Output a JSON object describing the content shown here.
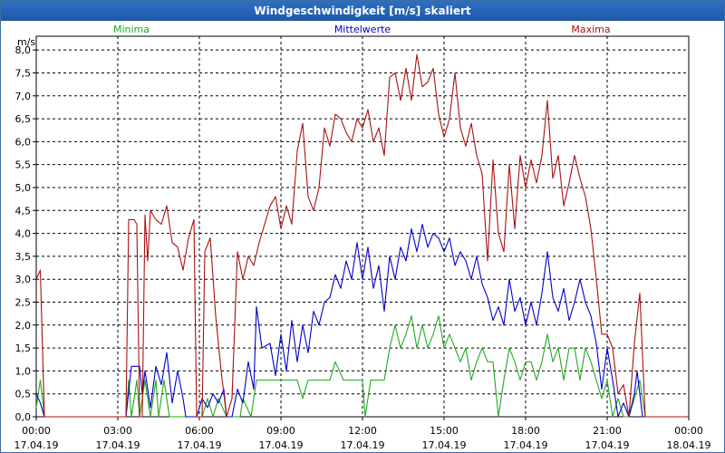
{
  "chart_data": {
    "type": "line",
    "title": "Windgeschwindigkeit [m/s] skaliert",
    "ylabel": "m/s",
    "ylim": [
      0,
      8.3
    ],
    "xlim": [
      0,
      24
    ],
    "yticks": [
      "0,0",
      "0,5",
      "1,0",
      "1,5",
      "2,0",
      "2,5",
      "3,0",
      "3,5",
      "4,0",
      "4,5",
      "5,0",
      "5,5",
      "6,0",
      "6,5",
      "7,0",
      "7,5",
      "8,0"
    ],
    "xticks": [
      {
        "time": "00:00",
        "date": "17.04.19"
      },
      {
        "time": "03:00",
        "date": "17.04.19"
      },
      {
        "time": "06:00",
        "date": "17.04.19"
      },
      {
        "time": "09:00",
        "date": "17.04.19"
      },
      {
        "time": "12:00",
        "date": "17.04.19"
      },
      {
        "time": "15:00",
        "date": "17.04.19"
      },
      {
        "time": "18:00",
        "date": "17.04.19"
      },
      {
        "time": "21:00",
        "date": "17.04.19"
      },
      {
        "time": "00:00",
        "date": "18.04.19"
      }
    ],
    "grid": true,
    "series": [
      {
        "name": "Minima",
        "color": "#22aa22",
        "points": [
          [
            0,
            0.2
          ],
          [
            0.15,
            0.8
          ],
          [
            0.3,
            0
          ],
          [
            3.3,
            0
          ],
          [
            3.4,
            0.8
          ],
          [
            3.5,
            0
          ],
          [
            3.7,
            0.8
          ],
          [
            3.8,
            0
          ],
          [
            4.0,
            0.8
          ],
          [
            4.2,
            0
          ],
          [
            4.4,
            0.8
          ],
          [
            4.5,
            0
          ],
          [
            4.7,
            0.8
          ],
          [
            4.9,
            0
          ],
          [
            5.4,
            0
          ],
          [
            6.1,
            0
          ],
          [
            6.3,
            0.4
          ],
          [
            6.5,
            0
          ],
          [
            6.7,
            0.4
          ],
          [
            7.0,
            0
          ],
          [
            7.5,
            0
          ],
          [
            7.6,
            0.4
          ],
          [
            7.9,
            0
          ],
          [
            8.1,
            0.8
          ],
          [
            8.3,
            0.8
          ],
          [
            8.6,
            0.8
          ],
          [
            8.8,
            0.8
          ],
          [
            9.2,
            0.8
          ],
          [
            9.4,
            0.8
          ],
          [
            9.6,
            0.8
          ],
          [
            9.8,
            0.4
          ],
          [
            10.0,
            0.8
          ],
          [
            10.8,
            0.8
          ],
          [
            11.0,
            1.2
          ],
          [
            11.3,
            0.8
          ],
          [
            11.6,
            0.8
          ],
          [
            12.0,
            0.8
          ],
          [
            12.1,
            0
          ],
          [
            12.3,
            0.8
          ],
          [
            12.8,
            0.8
          ],
          [
            13.0,
            1.5
          ],
          [
            13.2,
            2.0
          ],
          [
            13.4,
            1.5
          ],
          [
            13.6,
            1.8
          ],
          [
            13.8,
            2.2
          ],
          [
            14.0,
            1.5
          ],
          [
            14.2,
            2.0
          ],
          [
            14.4,
            1.5
          ],
          [
            14.6,
            1.8
          ],
          [
            14.8,
            2.2
          ],
          [
            15.0,
            1.5
          ],
          [
            15.2,
            1.8
          ],
          [
            15.4,
            1.5
          ],
          [
            15.6,
            1.2
          ],
          [
            15.8,
            1.5
          ],
          [
            16.0,
            0.8
          ],
          [
            16.2,
            1.2
          ],
          [
            16.4,
            1.5
          ],
          [
            16.6,
            1.2
          ],
          [
            16.8,
            1.2
          ],
          [
            17.0,
            0
          ],
          [
            17.2,
            0.8
          ],
          [
            17.4,
            1.5
          ],
          [
            17.6,
            1.2
          ],
          [
            17.8,
            0.8
          ],
          [
            18.0,
            1.2
          ],
          [
            18.2,
            1.2
          ],
          [
            18.4,
            0.8
          ],
          [
            18.6,
            1.2
          ],
          [
            18.8,
            1.8
          ],
          [
            19.0,
            1.2
          ],
          [
            19.2,
            1.5
          ],
          [
            19.4,
            0.8
          ],
          [
            19.6,
            1.5
          ],
          [
            19.8,
            1.5
          ],
          [
            20.0,
            0.8
          ],
          [
            20.2,
            1.5
          ],
          [
            20.4,
            1.2
          ],
          [
            20.6,
            0.8
          ],
          [
            20.8,
            0.4
          ],
          [
            21.0,
            0.8
          ],
          [
            21.2,
            0
          ],
          [
            21.4,
            0.4
          ],
          [
            21.6,
            0
          ],
          [
            21.8,
            0
          ],
          [
            22.0,
            0.4
          ],
          [
            22.2,
            0.8
          ],
          [
            22.4,
            0
          ],
          [
            24,
            0
          ]
        ]
      },
      {
        "name": "Mittelwerte",
        "color": "#0000cc",
        "points": [
          [
            0,
            0.5
          ],
          [
            0.15,
            0.3
          ],
          [
            0.3,
            0
          ],
          [
            3.3,
            0
          ],
          [
            3.5,
            1.1
          ],
          [
            3.8,
            1.1
          ],
          [
            3.9,
            0.5
          ],
          [
            4.0,
            1.0
          ],
          [
            4.2,
            0.2
          ],
          [
            4.4,
            1.1
          ],
          [
            4.6,
            0.7
          ],
          [
            4.8,
            1.4
          ],
          [
            5.0,
            0.3
          ],
          [
            5.2,
            1.0
          ],
          [
            5.4,
            0.4
          ],
          [
            5.5,
            0
          ],
          [
            5.9,
            0
          ],
          [
            6.1,
            0.4
          ],
          [
            6.3,
            0.2
          ],
          [
            6.5,
            0.5
          ],
          [
            6.7,
            0.3
          ],
          [
            6.9,
            0.6
          ],
          [
            7.0,
            0
          ],
          [
            7.2,
            0
          ],
          [
            7.4,
            0.6
          ],
          [
            7.6,
            0.3
          ],
          [
            7.8,
            1.2
          ],
          [
            8.0,
            0.6
          ],
          [
            8.1,
            2.4
          ],
          [
            8.3,
            1.5
          ],
          [
            8.6,
            1.6
          ],
          [
            8.8,
            0.9
          ],
          [
            9.0,
            1.8
          ],
          [
            9.2,
            1.0
          ],
          [
            9.4,
            2.1
          ],
          [
            9.6,
            1.2
          ],
          [
            9.8,
            2.0
          ],
          [
            10.0,
            1.4
          ],
          [
            10.2,
            2.3
          ],
          [
            10.4,
            2.0
          ],
          [
            10.6,
            2.5
          ],
          [
            10.8,
            2.6
          ],
          [
            11.0,
            3.1
          ],
          [
            11.2,
            2.8
          ],
          [
            11.4,
            3.4
          ],
          [
            11.6,
            3.0
          ],
          [
            11.8,
            3.8
          ],
          [
            12.0,
            3.0
          ],
          [
            12.2,
            3.7
          ],
          [
            12.4,
            2.8
          ],
          [
            12.6,
            3.3
          ],
          [
            12.8,
            2.3
          ],
          [
            13.0,
            3.5
          ],
          [
            13.2,
            3.0
          ],
          [
            13.4,
            3.7
          ],
          [
            13.6,
            3.4
          ],
          [
            13.8,
            4.1
          ],
          [
            14.0,
            3.6
          ],
          [
            14.2,
            4.2
          ],
          [
            14.4,
            3.7
          ],
          [
            14.6,
            4.0
          ],
          [
            14.8,
            3.9
          ],
          [
            15.0,
            3.6
          ],
          [
            15.2,
            3.9
          ],
          [
            15.4,
            3.3
          ],
          [
            15.6,
            3.6
          ],
          [
            15.8,
            3.4
          ],
          [
            16.0,
            3.0
          ],
          [
            16.2,
            3.5
          ],
          [
            16.4,
            2.9
          ],
          [
            16.6,
            2.6
          ],
          [
            16.8,
            2.1
          ],
          [
            17.0,
            2.4
          ],
          [
            17.2,
            2.0
          ],
          [
            17.4,
            3.0
          ],
          [
            17.6,
            2.3
          ],
          [
            17.8,
            2.6
          ],
          [
            18.0,
            2.0
          ],
          [
            18.2,
            2.5
          ],
          [
            18.4,
            2.0
          ],
          [
            18.6,
            2.7
          ],
          [
            18.8,
            3.6
          ],
          [
            19.0,
            2.6
          ],
          [
            19.2,
            2.3
          ],
          [
            19.4,
            2.8
          ],
          [
            19.6,
            2.1
          ],
          [
            19.8,
            2.5
          ],
          [
            20.0,
            3.0
          ],
          [
            20.2,
            2.5
          ],
          [
            20.4,
            2.2
          ],
          [
            20.6,
            1.6
          ],
          [
            20.8,
            0.6
          ],
          [
            21.0,
            1.5
          ],
          [
            21.2,
            0.8
          ],
          [
            21.4,
            0
          ],
          [
            21.6,
            0.3
          ],
          [
            21.8,
            0
          ],
          [
            22.0,
            0.5
          ],
          [
            22.1,
            1.0
          ],
          [
            22.3,
            0
          ],
          [
            24,
            0
          ]
        ]
      },
      {
        "name": "Maxima",
        "color": "#aa1111",
        "points": [
          [
            0,
            3.0
          ],
          [
            0.15,
            3.2
          ],
          [
            0.3,
            0
          ],
          [
            3.3,
            0
          ],
          [
            3.4,
            4.3
          ],
          [
            3.6,
            4.3
          ],
          [
            3.7,
            4.2
          ],
          [
            3.8,
            0
          ],
          [
            3.9,
            0
          ],
          [
            4.0,
            4.4
          ],
          [
            4.1,
            3.4
          ],
          [
            4.2,
            4.5
          ],
          [
            4.4,
            4.3
          ],
          [
            4.6,
            4.2
          ],
          [
            4.8,
            4.6
          ],
          [
            5.0,
            3.8
          ],
          [
            5.2,
            3.7
          ],
          [
            5.4,
            3.2
          ],
          [
            5.6,
            3.9
          ],
          [
            5.8,
            4.3
          ],
          [
            5.9,
            0
          ],
          [
            6.1,
            0
          ],
          [
            6.2,
            3.6
          ],
          [
            6.4,
            3.9
          ],
          [
            6.6,
            2.2
          ],
          [
            6.8,
            1.0
          ],
          [
            7.0,
            0
          ],
          [
            7.2,
            0.4
          ],
          [
            7.4,
            3.6
          ],
          [
            7.6,
            3.0
          ],
          [
            7.8,
            3.5
          ],
          [
            8.0,
            3.3
          ],
          [
            8.2,
            3.8
          ],
          [
            8.4,
            4.2
          ],
          [
            8.6,
            4.6
          ],
          [
            8.8,
            4.8
          ],
          [
            9.0,
            4.1
          ],
          [
            9.2,
            4.6
          ],
          [
            9.4,
            4.2
          ],
          [
            9.6,
            5.8
          ],
          [
            9.8,
            6.4
          ],
          [
            10.0,
            4.8
          ],
          [
            10.2,
            4.5
          ],
          [
            10.4,
            5.0
          ],
          [
            10.6,
            6.3
          ],
          [
            10.8,
            5.9
          ],
          [
            11.0,
            6.6
          ],
          [
            11.2,
            6.5
          ],
          [
            11.4,
            6.2
          ],
          [
            11.6,
            6.0
          ],
          [
            11.8,
            6.5
          ],
          [
            12.0,
            6.3
          ],
          [
            12.2,
            6.7
          ],
          [
            12.4,
            6.0
          ],
          [
            12.6,
            6.3
          ],
          [
            12.8,
            5.7
          ],
          [
            13.0,
            7.4
          ],
          [
            13.2,
            7.5
          ],
          [
            13.4,
            6.9
          ],
          [
            13.6,
            7.6
          ],
          [
            13.8,
            6.9
          ],
          [
            14.0,
            7.9
          ],
          [
            14.2,
            7.2
          ],
          [
            14.4,
            7.3
          ],
          [
            14.6,
            7.6
          ],
          [
            14.8,
            6.6
          ],
          [
            15.0,
            6.1
          ],
          [
            15.2,
            6.5
          ],
          [
            15.4,
            7.5
          ],
          [
            15.6,
            6.3
          ],
          [
            15.8,
            5.9
          ],
          [
            16.0,
            6.4
          ],
          [
            16.2,
            5.7
          ],
          [
            16.4,
            5.3
          ],
          [
            16.6,
            3.4
          ],
          [
            16.8,
            5.6
          ],
          [
            17.0,
            4.0
          ],
          [
            17.2,
            3.6
          ],
          [
            17.4,
            5.5
          ],
          [
            17.6,
            4.1
          ],
          [
            17.8,
            5.7
          ],
          [
            18.0,
            5.0
          ],
          [
            18.2,
            5.6
          ],
          [
            18.4,
            5.1
          ],
          [
            18.6,
            5.7
          ],
          [
            18.8,
            6.9
          ],
          [
            19.0,
            5.2
          ],
          [
            19.2,
            5.7
          ],
          [
            19.4,
            4.6
          ],
          [
            19.6,
            5.1
          ],
          [
            19.8,
            5.7
          ],
          [
            20.0,
            5.2
          ],
          [
            20.2,
            4.8
          ],
          [
            20.4,
            4.1
          ],
          [
            20.6,
            3.0
          ],
          [
            20.8,
            1.8
          ],
          [
            21.0,
            1.8
          ],
          [
            21.2,
            1.5
          ],
          [
            21.4,
            0.5
          ],
          [
            21.6,
            0.7
          ],
          [
            21.8,
            0
          ],
          [
            22.0,
            1.6
          ],
          [
            22.2,
            2.7
          ],
          [
            22.4,
            0
          ],
          [
            24,
            0
          ]
        ]
      }
    ]
  }
}
